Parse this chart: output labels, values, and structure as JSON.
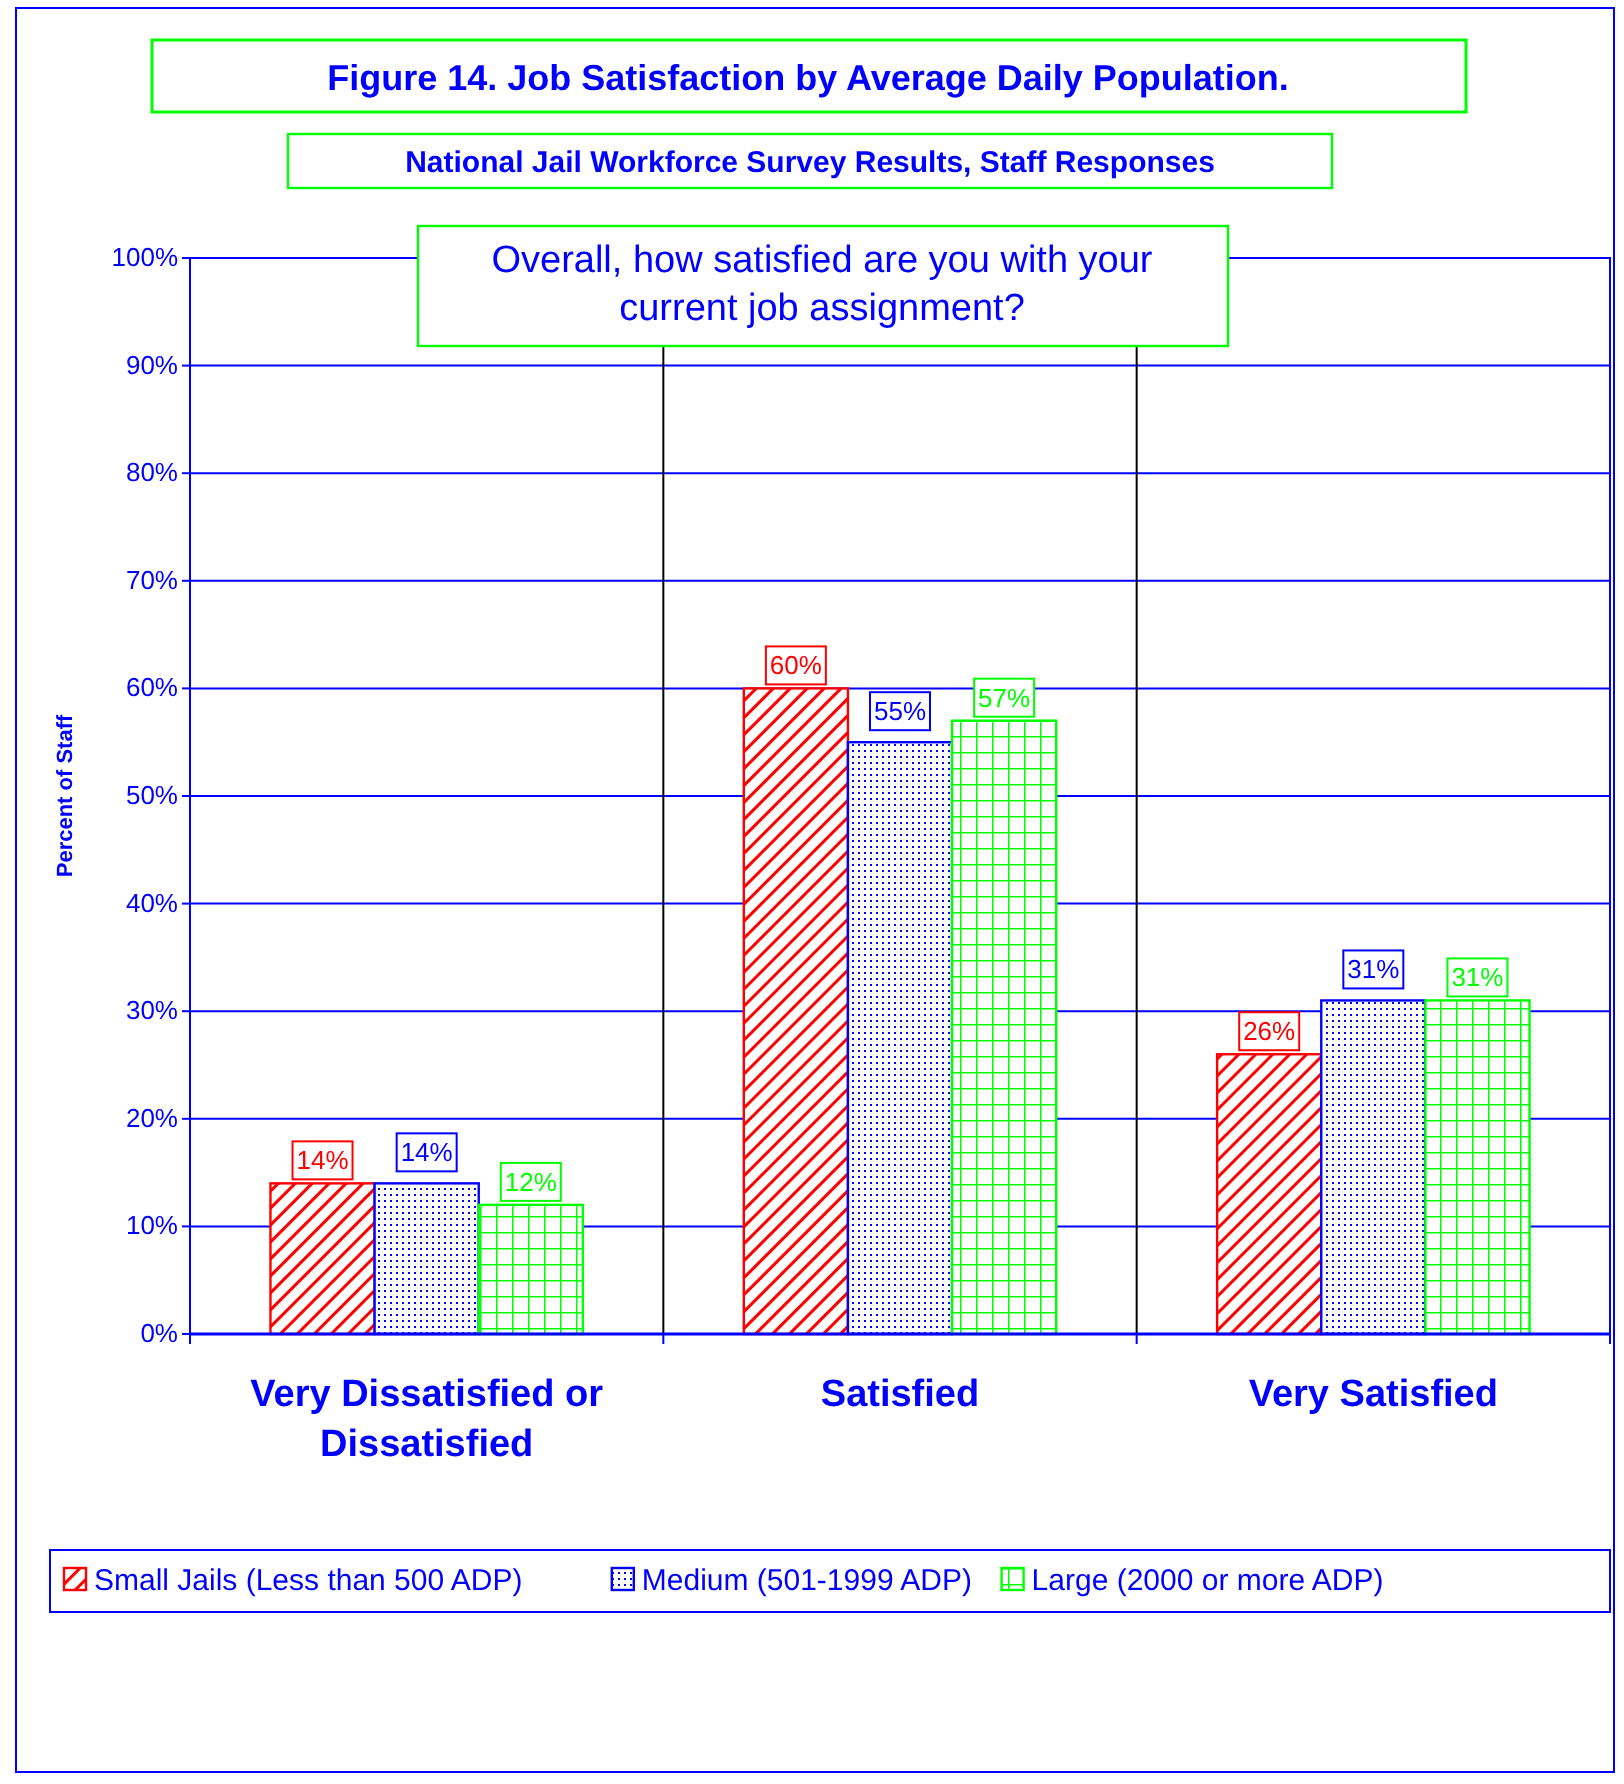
{
  "chart_data": {
    "type": "bar",
    "title": "Figure 14. Job Satisfaction by Average Daily Population.",
    "subtitle": "National Jail Workforce Survey Results, Staff Responses",
    "ylabel": "Percent of Staff",
    "annotations": [
      "Overall, how satisfied are you with your current job assignment?"
    ],
    "categories": [
      "Very Dissatisfied or Dissatisfied",
      "Satisfied",
      "Very Satisfied"
    ],
    "series": [
      {
        "name": "Small Jails (Less than 500 ADP)",
        "color": "#ff0000",
        "values": [
          14,
          60,
          26
        ],
        "value_labels": [
          "14%",
          "60%",
          "26%"
        ]
      },
      {
        "name": "Medium (501-1999 ADP)",
        "color": "#0000ff",
        "values": [
          14,
          55,
          31
        ],
        "value_labels": [
          "14%",
          "55%",
          "31%"
        ]
      },
      {
        "name": "Large (2000 or more ADP)",
        "color": "#00ff00",
        "values": [
          12,
          57,
          31
        ],
        "value_labels": [
          "12%",
          "57%",
          "31%"
        ]
      }
    ],
    "ylim": [
      0,
      100
    ],
    "yticks": [
      {
        "value": 0,
        "label": "0%"
      },
      {
        "value": 10,
        "label": "10%"
      },
      {
        "value": 20,
        "label": "20%"
      },
      {
        "value": 30,
        "label": "30%"
      },
      {
        "value": 40,
        "label": "40%"
      },
      {
        "value": 50,
        "label": "50%"
      },
      {
        "value": 60,
        "label": "60%"
      },
      {
        "value": 70,
        "label": "70%"
      },
      {
        "value": 80,
        "label": "80%"
      },
      {
        "value": 90,
        "label": "90%"
      },
      {
        "value": 100,
        "label": "100%"
      }
    ],
    "grid": "y",
    "legend": "bottom"
  }
}
